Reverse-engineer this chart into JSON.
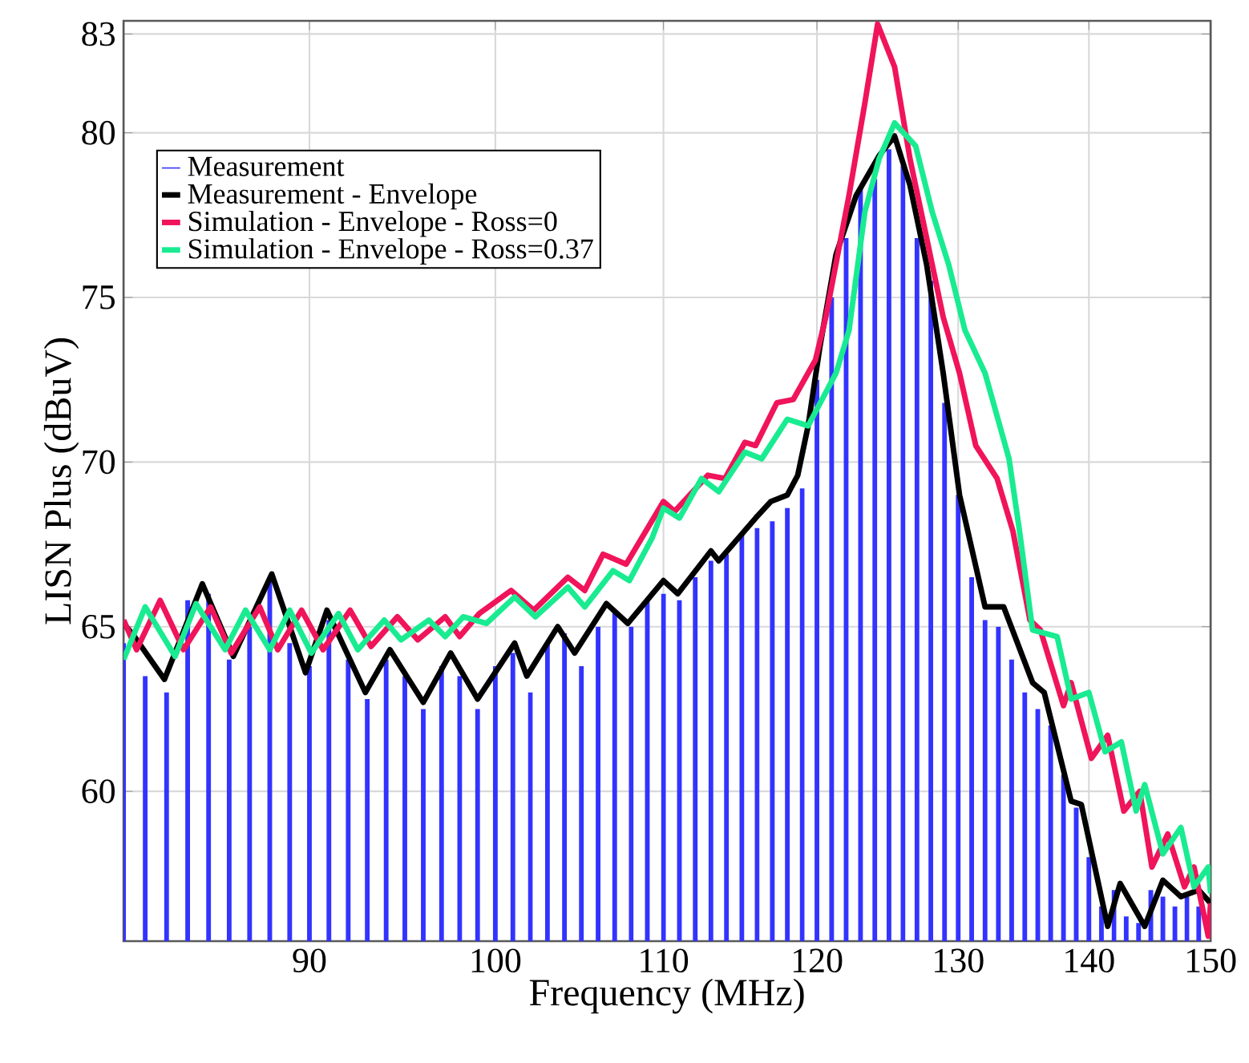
{
  "chart_data": {
    "type": "line",
    "xlabel": "Frequency (MHz)",
    "ylabel": "LISN Plus (dBuV)",
    "log": "x",
    "grid": true,
    "legend": "top left",
    "xlim": [
      81,
      150
    ],
    "ylim": [
      55.45,
      83.4
    ],
    "xticks": [
      90,
      100,
      110,
      120,
      130,
      140,
      150
    ],
    "yticks": [
      60,
      65,
      70,
      75,
      80,
      83
    ],
    "series": [
      {
        "name": "Measurement",
        "type": "bar",
        "color": "#3333ff",
        "x": [
          81,
          82,
          83,
          84,
          85,
          86,
          87,
          88,
          89,
          90,
          91,
          92,
          93,
          94,
          95,
          96,
          97,
          98,
          99,
          100,
          101,
          102,
          103,
          104,
          105,
          106,
          107,
          108,
          109,
          110,
          111,
          112,
          113,
          114,
          115,
          116,
          117,
          118,
          119,
          120,
          121,
          122,
          123,
          124,
          125,
          126,
          127,
          128,
          129,
          130,
          131,
          132,
          133,
          134,
          135,
          136,
          137,
          138,
          139,
          140,
          141,
          142,
          143,
          144,
          145,
          146,
          147,
          148,
          149
        ],
        "values": [
          64.5,
          63.5,
          63.0,
          65.8,
          66.0,
          64.0,
          65.0,
          66.5,
          64.5,
          63.8,
          65.2,
          64.0,
          62.8,
          64.0,
          63.5,
          62.5,
          63.8,
          63.5,
          62.5,
          63.8,
          64.2,
          63.0,
          64.5,
          64.8,
          63.8,
          65.0,
          65.5,
          65.0,
          65.8,
          66.0,
          65.8,
          66.5,
          67.0,
          67.2,
          67.8,
          68.0,
          68.2,
          68.6,
          69.2,
          72.5,
          75.0,
          76.8,
          78.3,
          78.6,
          79.5,
          79.0,
          76.8,
          75.5,
          71.8,
          69.0,
          66.5,
          65.2,
          65.0,
          64.0,
          63.0,
          62.5,
          62.0,
          60.5,
          59.5,
          58.0,
          56.5,
          57.0,
          56.2,
          56.0,
          57.0,
          56.8,
          56.5,
          56.8,
          56.5
        ]
      },
      {
        "name": "Measurement - Envelope",
        "color": "#000000",
        "x": [
          81,
          81.5,
          82.9,
          84.7,
          86.2,
          88.1,
          89.8,
          90.9,
          92.9,
          94.2,
          96.0,
          97.5,
          99.0,
          101.1,
          101.8,
          103.6,
          104.6,
          106.5,
          107.8,
          110.0,
          110.9,
          113.0,
          113.5,
          115.9,
          116.9,
          118.0,
          118.7,
          119.4,
          120.2,
          121.3,
          122.7,
          124.3,
          125.4,
          126.5,
          127.7,
          128.9,
          130.1,
          132.0,
          133.4,
          135.6,
          136.5,
          138.6,
          139.4,
          141.5,
          142.5,
          144.5,
          146.0,
          147.5,
          149.0,
          150
        ],
        "values": [
          65.1,
          64.7,
          63.4,
          66.3,
          64.1,
          66.6,
          63.6,
          65.5,
          63.0,
          64.3,
          62.7,
          64.2,
          62.8,
          64.5,
          63.5,
          65.0,
          64.2,
          65.7,
          65.1,
          66.4,
          66.0,
          67.3,
          67.0,
          68.3,
          68.8,
          69.0,
          69.6,
          71.1,
          73.5,
          76.3,
          78.1,
          79.3,
          79.9,
          78.4,
          76.0,
          72.7,
          69.0,
          65.6,
          65.6,
          63.3,
          63.0,
          59.7,
          59.6,
          55.9,
          57.2,
          55.9,
          57.3,
          56.8,
          57.0,
          56.6
        ]
      },
      {
        "name": "Simulation - Envelope - Ross=0",
        "color": "#f0145a",
        "x": [
          81.0,
          81.6,
          82.7,
          83.8,
          85.1,
          86.1,
          87.5,
          88.4,
          89.6,
          90.7,
          92.1,
          93.2,
          94.6,
          95.7,
          97.2,
          98.0,
          99.1,
          100.9,
          102.2,
          104.2,
          105.2,
          106.3,
          107.7,
          110.0,
          110.7,
          112.8,
          113.9,
          115.2,
          115.9,
          117.3,
          118.4,
          119.9,
          120.6,
          122.2,
          123.3,
          124.2,
          125.4,
          126.5,
          127.7,
          128.9,
          130.1,
          131.3,
          132.9,
          134.1,
          135.4,
          136.2,
          138.0,
          138.6,
          140.2,
          141.5,
          142.8,
          144.1,
          145.1,
          146.4,
          147.8,
          148.6,
          149.8,
          150
        ],
        "values": [
          65.2,
          64.3,
          65.8,
          64.3,
          65.6,
          64.2,
          65.6,
          64.3,
          65.5,
          64.3,
          65.5,
          64.4,
          65.3,
          64.6,
          65.3,
          64.7,
          65.4,
          66.1,
          65.5,
          66.5,
          66.1,
          67.2,
          66.9,
          68.8,
          68.5,
          69.6,
          69.5,
          70.6,
          70.5,
          71.8,
          71.9,
          73.1,
          74.4,
          78.1,
          80.9,
          83.3,
          82.0,
          79.2,
          76.8,
          74.4,
          72.7,
          70.5,
          69.5,
          67.9,
          65.2,
          64.9,
          62.6,
          63.3,
          61.0,
          61.7,
          59.4,
          60.0,
          57.7,
          58.7,
          57.1,
          57.7,
          55.6,
          56.6
        ]
      },
      {
        "name": "Simulation - Envelope - Ross=0.37",
        "color": "#19eb91",
        "x": [
          81.0,
          82.0,
          83.4,
          84.4,
          85.8,
          86.8,
          88.0,
          89.0,
          90.1,
          91.5,
          92.5,
          93.9,
          94.8,
          96.3,
          97.2,
          98.2,
          99.5,
          101.1,
          102.3,
          104.2,
          105.2,
          106.9,
          107.9,
          109.3,
          110.0,
          111.0,
          112.4,
          113.5,
          115.2,
          116.3,
          118.0,
          119.4,
          121.3,
          122.2,
          123.3,
          124.3,
          125.4,
          126.9,
          128.1,
          129.3,
          130.5,
          132.0,
          133.8,
          134.6,
          135.6,
          137.5,
          138.6,
          140.0,
          141.3,
          142.6,
          143.8,
          144.5,
          146.0,
          147.5,
          148.6,
          149.8,
          150
        ],
        "values": [
          64.0,
          65.6,
          64.1,
          65.7,
          64.3,
          65.5,
          64.3,
          65.5,
          64.2,
          65.4,
          64.3,
          65.2,
          64.6,
          65.2,
          64.7,
          65.3,
          65.1,
          65.9,
          65.3,
          66.2,
          65.6,
          66.7,
          66.4,
          67.7,
          68.6,
          68.3,
          69.5,
          69.1,
          70.3,
          70.1,
          71.3,
          71.1,
          72.7,
          74.0,
          77.6,
          79.2,
          80.3,
          79.6,
          77.6,
          76.0,
          74.0,
          72.7,
          70.1,
          67.9,
          64.9,
          64.7,
          62.8,
          63.0,
          61.2,
          61.5,
          59.4,
          60.2,
          58.1,
          58.9,
          57.1,
          57.7,
          56.9
        ]
      }
    ]
  }
}
